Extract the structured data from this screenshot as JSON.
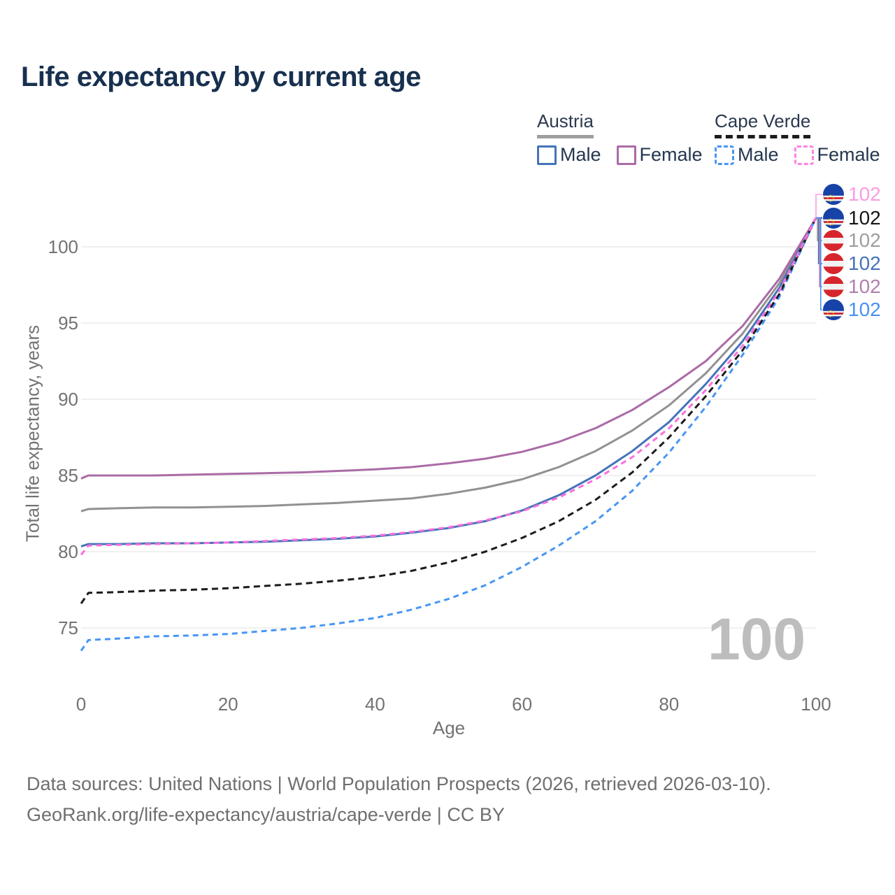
{
  "page": {
    "title": "Life expectancy by current age"
  },
  "legend": {
    "groups": [
      {
        "id": "austria",
        "label": "Austria",
        "line_style": "solid",
        "underline_color": "#9e9e9e",
        "items": [
          {
            "id": "austria-male",
            "label": "Male",
            "color": "#4574b9",
            "dashed": false
          },
          {
            "id": "austria-female",
            "label": "Female",
            "color": "#ab6ba6",
            "dashed": false
          }
        ]
      },
      {
        "id": "cape-verde",
        "label": "Cape Verde",
        "line_style": "dashed",
        "underline_color": "#1c1c1c",
        "items": [
          {
            "id": "cape-verde-male",
            "label": "Male",
            "color": "#4896f3",
            "dashed": true
          },
          {
            "id": "cape-verde-female",
            "label": "Female",
            "color": "#fb84e3",
            "dashed": true
          }
        ]
      }
    ]
  },
  "watermark_age": "100",
  "end_labels": [
    {
      "series": "Cape Verde Female",
      "flag": "cape-verde",
      "value": "102",
      "color": "#fb9be2"
    },
    {
      "series": "Cape Verde Total",
      "flag": "cape-verde",
      "value": "102",
      "color": "#161616"
    },
    {
      "series": "Austria Total",
      "flag": "austria",
      "value": "102",
      "color": "#9e9e9e"
    },
    {
      "series": "Austria Male",
      "flag": "austria",
      "value": "102",
      "color": "#4574b9"
    },
    {
      "series": "Austria Female",
      "flag": "austria",
      "value": "102",
      "color": "#b27fae"
    },
    {
      "series": "Cape Verde Male",
      "flag": "cape-verde",
      "value": "102",
      "color": "#4a90f0"
    }
  ],
  "footer": {
    "line1": "Data sources: United Nations | World Population Prospects (2026, retrieved 2026-03-10).",
    "line2": "GeoRank.org/life-expectancy/austria/cape-verde | CC BY"
  },
  "chart_data": {
    "type": "line",
    "title": "Life expectancy by current age",
    "xlabel": "Age",
    "ylabel": "Total life expectancy, years",
    "x_ticks": [
      0,
      20,
      40,
      60,
      80,
      100
    ],
    "y_ticks": [
      75,
      80,
      85,
      90,
      95,
      100
    ],
    "xlim": [
      0,
      100
    ],
    "ylim": [
      73,
      103
    ],
    "grid": "horizontal-only",
    "legend_position": "top-right",
    "end_value_label": "102",
    "x": [
      0,
      1,
      5,
      10,
      15,
      20,
      25,
      30,
      35,
      40,
      45,
      50,
      55,
      60,
      65,
      70,
      75,
      80,
      85,
      90,
      95,
      100
    ],
    "series": [
      {
        "name": "Austria Total",
        "country": "Austria",
        "sex": "all",
        "style": "solid",
        "color": "#919191",
        "values": [
          82.65,
          82.8,
          82.85,
          82.9,
          82.9,
          82.95,
          83.0,
          83.1,
          83.2,
          83.35,
          83.5,
          83.8,
          84.2,
          84.75,
          85.55,
          86.6,
          87.95,
          89.6,
          91.7,
          94.3,
          97.6,
          101.9
        ]
      },
      {
        "name": "Austria Male",
        "country": "Austria",
        "sex": "male",
        "style": "solid",
        "color": "#4574b9",
        "values": [
          80.35,
          80.5,
          80.5,
          80.55,
          80.55,
          80.6,
          80.65,
          80.75,
          80.85,
          81.0,
          81.25,
          81.55,
          82.0,
          82.7,
          83.7,
          85.0,
          86.6,
          88.5,
          91.0,
          93.8,
          97.3,
          101.9
        ]
      },
      {
        "name": "Austria Female",
        "country": "Austria",
        "sex": "female",
        "style": "solid",
        "color": "#ab6ba6",
        "values": [
          84.8,
          85.0,
          85.0,
          85.0,
          85.05,
          85.1,
          85.15,
          85.2,
          85.3,
          85.4,
          85.55,
          85.8,
          86.1,
          86.55,
          87.2,
          88.1,
          89.3,
          90.8,
          92.5,
          94.8,
          97.9,
          101.9
        ]
      },
      {
        "name": "Cape Verde Male",
        "country": "Cape Verde",
        "sex": "male",
        "style": "dashed",
        "color": "#4896f3",
        "values": [
          73.5,
          74.2,
          74.3,
          74.45,
          74.5,
          74.6,
          74.8,
          75.0,
          75.3,
          75.65,
          76.2,
          76.9,
          77.8,
          79.0,
          80.4,
          82.0,
          84.0,
          86.5,
          89.5,
          92.9,
          96.7,
          101.9
        ]
      },
      {
        "name": "Cape Verde Total",
        "country": "Cape Verde",
        "sex": "all",
        "style": "dashed",
        "color": "#1c1c1c",
        "values": [
          76.6,
          77.3,
          77.35,
          77.45,
          77.5,
          77.6,
          77.75,
          77.9,
          78.1,
          78.35,
          78.75,
          79.3,
          80.0,
          80.9,
          82.0,
          83.4,
          85.2,
          87.5,
          90.2,
          93.2,
          96.9,
          101.9
        ]
      },
      {
        "name": "Cape Verde Female",
        "country": "Cape Verde",
        "sex": "female",
        "style": "dashed",
        "color": "#fb6fdc",
        "values": [
          79.8,
          80.4,
          80.45,
          80.5,
          80.55,
          80.6,
          80.7,
          80.8,
          80.9,
          81.05,
          81.3,
          81.6,
          82.05,
          82.65,
          83.55,
          84.75,
          86.2,
          88.1,
          90.6,
          93.5,
          97.1,
          101.9
        ]
      }
    ]
  }
}
